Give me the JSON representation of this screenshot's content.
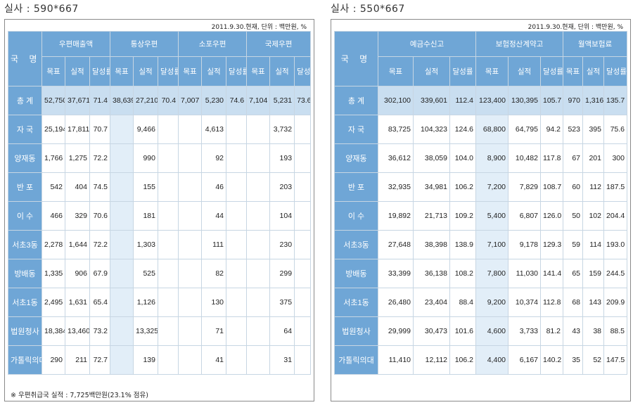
{
  "left": {
    "caption": "실사 : 590*667",
    "meta": "2011.9.30.현재, 단위 : 백만원, %",
    "region_header": "국 명",
    "groups": [
      "우편매출액",
      "통상우편",
      "소포우편",
      "국제우편"
    ],
    "subheaders": [
      "목표",
      "실적",
      "달성률",
      "목표",
      "실적",
      "달성률",
      "목표",
      "실적",
      "달성률",
      "목표",
      "실적",
      "달성률"
    ],
    "rows": [
      {
        "name": "총 계",
        "cells": [
          "52,750",
          "37,671",
          "71.4",
          "38,639",
          "27,210",
          "70.4",
          "7,007",
          "5,230",
          "74.6",
          "7,104",
          "5,231",
          "73.6"
        ]
      },
      {
        "name": "자 국",
        "cells": [
          "25,194",
          "17,811",
          "70.7",
          "",
          "9,466",
          "",
          "",
          "4,613",
          "",
          "",
          "3,732",
          ""
        ]
      },
      {
        "name": "양재동",
        "cells": [
          "1,766",
          "1,275",
          "72.2",
          "",
          "990",
          "",
          "",
          "92",
          "",
          "",
          "193",
          ""
        ]
      },
      {
        "name": "반 포",
        "cells": [
          "542",
          "404",
          "74.5",
          "",
          "155",
          "",
          "",
          "46",
          "",
          "",
          "203",
          ""
        ]
      },
      {
        "name": "이 수",
        "cells": [
          "466",
          "329",
          "70.6",
          "",
          "181",
          "",
          "",
          "44",
          "",
          "",
          "104",
          ""
        ]
      },
      {
        "name": "서초3동",
        "cells": [
          "2,278",
          "1,644",
          "72.2",
          "",
          "1,303",
          "",
          "",
          "111",
          "",
          "",
          "230",
          ""
        ]
      },
      {
        "name": "방배동",
        "cells": [
          "1,335",
          "906",
          "67.9",
          "",
          "525",
          "",
          "",
          "82",
          "",
          "",
          "299",
          ""
        ]
      },
      {
        "name": "서초1동",
        "cells": [
          "2,495",
          "1,631",
          "65.4",
          "",
          "1,126",
          "",
          "",
          "130",
          "",
          "",
          "375",
          ""
        ]
      },
      {
        "name": "법원청사",
        "cells": [
          "18,384",
          "13,460",
          "73.2",
          "",
          "13,325",
          "",
          "",
          "71",
          "",
          "",
          "64",
          ""
        ]
      },
      {
        "name": "가톨릭의대",
        "cells": [
          "290",
          "211",
          "72.7",
          "",
          "139",
          "",
          "",
          "41",
          "",
          "",
          "31",
          ""
        ]
      }
    ],
    "footnote": "※ 우편취급국 실적 : 7,725백만원(23.1% 점유)"
  },
  "right": {
    "caption": "실사 : 550*667",
    "meta": "2011.9.30.현재, 단위 : 백만원, %",
    "region_header": "국 명",
    "groups": [
      "예금수신고",
      "보험정산계약고",
      "월액보험료"
    ],
    "subheaders": [
      "목표",
      "실적",
      "달성률",
      "목표",
      "실적",
      "달성률",
      "목표",
      "실적",
      "달성률"
    ],
    "rows": [
      {
        "name": "총 계",
        "cells": [
          "302,100",
          "339,601",
          "112.4",
          "123,400",
          "130,395",
          "105.7",
          "970",
          "1,316",
          "135.7"
        ]
      },
      {
        "name": "자 국",
        "cells": [
          "83,725",
          "104,323",
          "124.6",
          "68,800",
          "64,795",
          "94.2",
          "523",
          "395",
          "75.6"
        ]
      },
      {
        "name": "양재동",
        "cells": [
          "36,612",
          "38,059",
          "104.0",
          "8,900",
          "10,482",
          "117.8",
          "67",
          "201",
          "300"
        ]
      },
      {
        "name": "반 포",
        "cells": [
          "32,935",
          "34,981",
          "106.2",
          "7,200",
          "7,829",
          "108.7",
          "60",
          "112",
          "187.5"
        ]
      },
      {
        "name": "이 수",
        "cells": [
          "19,892",
          "21,713",
          "109.2",
          "5,400",
          "6,807",
          "126.0",
          "50",
          "102",
          "204.4"
        ]
      },
      {
        "name": "서초3동",
        "cells": [
          "27,648",
          "38,398",
          "138.9",
          "7,100",
          "9,178",
          "129.3",
          "59",
          "114",
          "193.0"
        ]
      },
      {
        "name": "방배동",
        "cells": [
          "33,399",
          "36,138",
          "108.2",
          "7,800",
          "11,030",
          "141.4",
          "65",
          "159",
          "244.5"
        ]
      },
      {
        "name": "서초1동",
        "cells": [
          "26,480",
          "23,404",
          "88.4",
          "9,200",
          "10,374",
          "112.8",
          "68",
          "143",
          "209.9"
        ]
      },
      {
        "name": "법원청사",
        "cells": [
          "29,999",
          "30,473",
          "101.6",
          "4,600",
          "3,733",
          "81.2",
          "43",
          "38",
          "88.5"
        ]
      },
      {
        "name": "가톨릭의대",
        "cells": [
          "11,410",
          "12,112",
          "106.2",
          "4,400",
          "6,167",
          "140.2",
          "35",
          "52",
          "147.5"
        ]
      }
    ]
  },
  "colors": {
    "header_blue": "#6fa6d6",
    "total_row": "#c9def0",
    "light_shade": "#e2eef8"
  }
}
